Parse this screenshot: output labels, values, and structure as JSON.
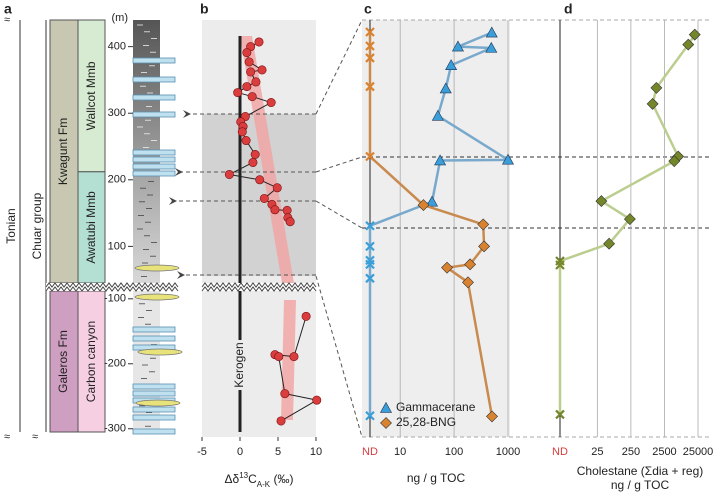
{
  "panel_labels": [
    "a",
    "b",
    "c",
    "d"
  ],
  "strat": {
    "period": "Tonian",
    "group": "Chuar group",
    "unit_label": "(m)",
    "ticks": [
      400,
      300,
      200,
      100,
      -100,
      -200,
      -300
    ],
    "upper_lim": [
      45,
      440
    ],
    "lower_lim": [
      -305,
      -88
    ],
    "formations": [
      {
        "name": "Kwagunt Fm",
        "range": [
          45,
          440
        ],
        "color": "#c8c8b2"
      },
      {
        "name": "Galeros Fm",
        "range": [
          -305,
          -88
        ],
        "color": "#cf9fc2"
      }
    ],
    "members": [
      {
        "name": "Wallcot Mmb",
        "range": [
          212,
          440
        ],
        "color": "#d6ebd2"
      },
      {
        "name": "Awatubi Mmb",
        "range": [
          45,
          212
        ],
        "color": "#b4dfd3"
      },
      {
        "name": "Carbon canyon",
        "range": [
          -305,
          -88
        ],
        "color": "#f6d0e2"
      }
    ]
  },
  "chart_data": [
    {
      "type": "scatter",
      "x_label": {
        "prefix": "Δδ",
        "sup": "13",
        "main": "C",
        "sub": "A-K",
        "suffix": " (‰)"
      },
      "annotation": "Kerogen",
      "xlim": [
        -5,
        10
      ],
      "xticks": [
        -5,
        0,
        5,
        10
      ],
      "series": [
        {
          "color": "#d93d3d",
          "x": [
            2.5,
            1.4,
            0.9,
            1.2,
            2.9,
            1.4,
            2.1,
            0.9,
            -0.3,
            1.6,
            4.1,
            0.7,
            0.1,
            0.4,
            0.3,
            0.8,
            2.0,
            1.7,
            -1.4,
            2.6,
            4.9,
            3.2,
            4.2,
            4.6,
            6.2,
            6.3,
            6.6,
            8.7,
            7.1,
            4.6,
            5.1,
            5.9,
            10.1,
            5.4
          ],
          "y": [
            407,
            400,
            391,
            377,
            365,
            362,
            347,
            340,
            331,
            325,
            316,
            295,
            287,
            280,
            272,
            259,
            238,
            226,
            208,
            200,
            188,
            172,
            163,
            155,
            154,
            143,
            137,
            -127,
            -189,
            -186,
            -189,
            -246,
            -256,
            -288
          ]
        }
      ]
    },
    {
      "type": "log-scatter",
      "x_label": "ng / g TOC",
      "nd_label": "ND",
      "xlim": [
        3,
        1000
      ],
      "xticks": [
        10,
        100,
        1000
      ],
      "grid": true,
      "legend": "lower left",
      "series": [
        {
          "name": "Gammacerane",
          "color": "#3a9fd8",
          "line_color": "#78a9cc",
          "marker": "triangle",
          "x": [
            500,
            118,
            490,
            88,
            70,
            50,
            1000,
            55,
            39,
            null,
            null,
            null,
            null,
            null,
            null
          ],
          "y": [
            421,
            400,
            398,
            372,
            337,
            296,
            230,
            229,
            167,
            131,
            100,
            79,
            73,
            52,
            -280
          ]
        },
        {
          "name": "25,28-BNG",
          "color": "#d9822f",
          "line_color": "#c98a4e",
          "marker": "diamond",
          "x": [
            null,
            null,
            null,
            null,
            null,
            27,
            347,
            360,
            198,
            74,
            181,
            505
          ],
          "y": [
            422,
            401,
            383,
            340,
            235,
            162,
            133,
            100,
            73,
            68,
            46,
            -281
          ]
        }
      ]
    },
    {
      "type": "log-scatter",
      "x_label": [
        "Cholestane (Σdia + reg)",
        "ng / g TOC"
      ],
      "nd_label": "ND",
      "xlim": [
        10,
        25000
      ],
      "xticks": [
        25,
        250,
        2500,
        25000
      ],
      "grid": true,
      "series": [
        {
          "color": "#74862a",
          "line_color": "#bccd90",
          "marker": "diamond",
          "x": [
            20000,
            12800,
            1440,
            1110,
            6400,
            4900,
            33,
            233,
            56,
            null,
            null,
            null
          ],
          "y": [
            418,
            403,
            338,
            314,
            235,
            228,
            168,
            141,
            104,
            78,
            72,
            -278
          ]
        }
      ]
    }
  ]
}
